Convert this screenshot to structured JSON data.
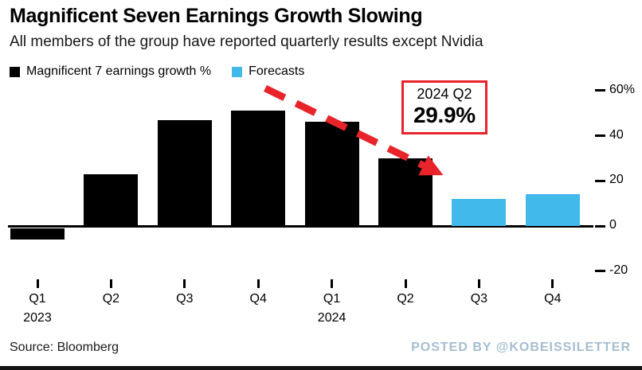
{
  "chart_data": {
    "type": "bar",
    "title": "Magnificent Seven Earnings Growth Slowing",
    "subtitle": "All members of the group have reported quarterly results except Nvidia",
    "categories": [
      "Q1 2023",
      "Q2 2023",
      "Q3 2023",
      "Q4 2023",
      "Q1 2024",
      "Q2 2024",
      "Q3 2024",
      "Q4 2024"
    ],
    "x_tick_labels": [
      "Q1",
      "Q2",
      "Q3",
      "Q4",
      "Q1",
      "Q2",
      "Q3",
      "Q4"
    ],
    "year_labels": [
      {
        "index": 0,
        "label": "2023"
      },
      {
        "index": 4,
        "label": "2024"
      }
    ],
    "series": [
      {
        "name": "Magnificent 7 earnings growth %",
        "color": "#000000",
        "values": [
          -5,
          23,
          47,
          51,
          46,
          29.9,
          null,
          null
        ]
      },
      {
        "name": "Forecasts",
        "color": "#41b9ea",
        "values": [
          null,
          null,
          null,
          null,
          null,
          null,
          12,
          14
        ]
      }
    ],
    "ylim": [
      -20,
      60
    ],
    "yticks": [
      {
        "value": 60,
        "label": "60%"
      },
      {
        "value": 40,
        "label": "40"
      },
      {
        "value": 20,
        "label": "20"
      },
      {
        "value": 0,
        "label": "0"
      },
      {
        "value": -20,
        "label": "-20"
      }
    ],
    "grid": "none",
    "legend_position": "top-left",
    "annotation": {
      "label": "2024 Q2",
      "value": "29.9%"
    },
    "colors": {
      "bar": "#000000",
      "forecast": "#41b9ea",
      "accent_red": "#e8242a",
      "watermark": "#a5bdd2"
    }
  },
  "footer": {
    "source": "Source: Bloomberg",
    "watermark": "POSTED BY @KOBEISSILETTER"
  }
}
